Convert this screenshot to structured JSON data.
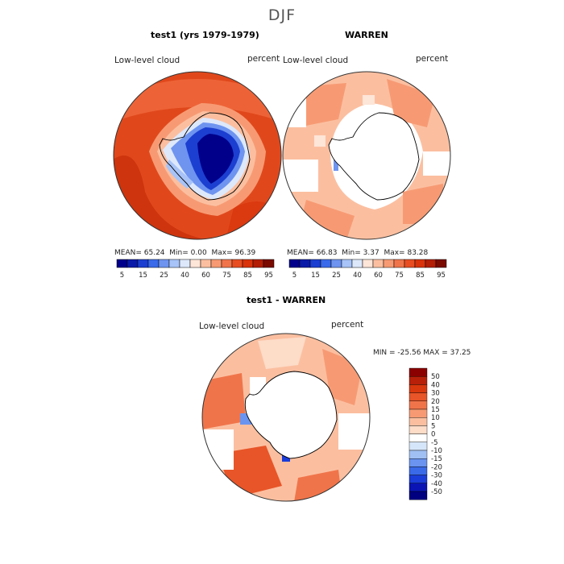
{
  "title": "DJF",
  "panels": [
    {
      "title": "test1 (yrs 1979-1979)",
      "variable": "Low-level cloud",
      "units": "percent",
      "stats": {
        "mean_label": "MEAN=",
        "mean": "65.24",
        "min_label": "Min=",
        "min": "0.00",
        "max_label": "Max=",
        "max": "96.39"
      }
    },
    {
      "title": "WARREN",
      "variable": "Low-level cloud",
      "units": "percent",
      "stats": {
        "mean_label": "MEAN=",
        "mean": "66.83",
        "min_label": "Min=",
        "min": "3.37",
        "max_label": "Max=",
        "max": "83.28"
      }
    },
    {
      "title": "test1 - WARREN",
      "variable": "Low-level cloud",
      "units": "percent",
      "stats_text": "MIN = -25.56 MAX =  37.25"
    }
  ],
  "colors": {
    "abs": [
      "#00008b",
      "#0a1aa8",
      "#1c3fd1",
      "#3a6aea",
      "#6e94f0",
      "#a7c3f7",
      "#dde8fb",
      "#fde5d8",
      "#fbbfa0",
      "#f79a73",
      "#f0744a",
      "#e84d22",
      "#d9330c",
      "#b31e06",
      "#7a0a00"
    ],
    "diff": [
      "#000080",
      "#0a14b4",
      "#1a3cd8",
      "#3a6ae8",
      "#6a94f0",
      "#a0c0f4",
      "#d6e6fa",
      "#ffffff",
      "#fddcc8",
      "#fbbfa0",
      "#f79a73",
      "#f0744a",
      "#e85528",
      "#d9380e",
      "#b8200a",
      "#8b0000"
    ],
    "land": "#ffffff",
    "coast": "#000000"
  },
  "chart_data": [
    {
      "type": "heatmap",
      "projection": "south-polar-stereographic",
      "title": "test1 (yrs 1979-1979)",
      "variable": "Low-level cloud",
      "units": "percent",
      "colorbar_ticks": [
        "5",
        "15",
        "25",
        "40",
        "60",
        "75",
        "85",
        "95"
      ],
      "mean": 65.24,
      "min": 0.0,
      "max": 96.39
    },
    {
      "type": "heatmap",
      "projection": "south-polar-stereographic",
      "title": "WARREN",
      "variable": "Low-level cloud",
      "units": "percent",
      "colorbar_ticks": [
        "5",
        "15",
        "25",
        "40",
        "60",
        "75",
        "85",
        "95"
      ],
      "mean": 66.83,
      "min": 3.37,
      "max": 83.28
    },
    {
      "type": "heatmap",
      "projection": "south-polar-stereographic",
      "title": "test1 - WARREN",
      "variable": "Low-level cloud",
      "units": "percent",
      "colorbar_ticks": [
        "50",
        "40",
        "30",
        "20",
        "15",
        "10",
        "5",
        "0",
        "-5",
        "-10",
        "-15",
        "-20",
        "-30",
        "-40",
        "-50"
      ],
      "min": -25.56,
      "max": 37.25
    }
  ]
}
